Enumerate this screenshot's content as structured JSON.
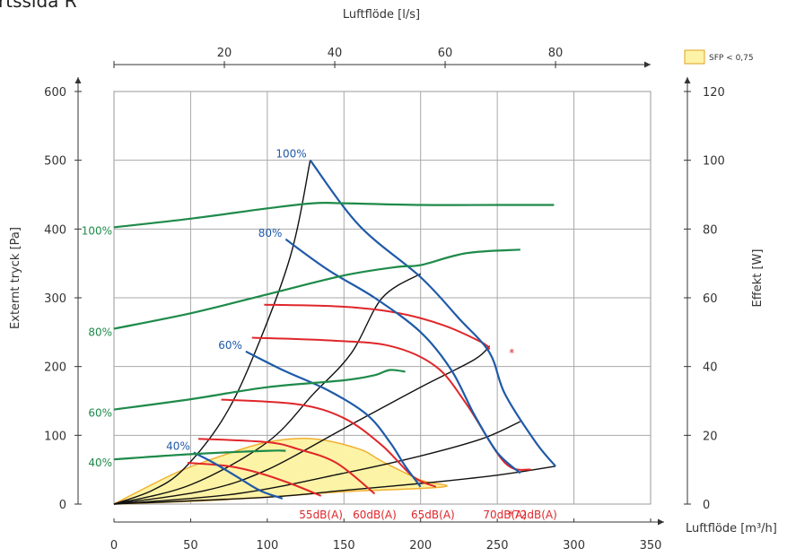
{
  "chart_data": {
    "type": "line",
    "title_fragment": "rtssida R",
    "x_axis_bottom": {
      "label": "Luftflöde [m³/h]",
      "range": [
        0,
        350
      ],
      "ticks": [
        0,
        50,
        100,
        150,
        200,
        250,
        300,
        350
      ]
    },
    "x_axis_top": {
      "label": "Luftflöde [l/s]",
      "ticks": [
        20,
        40,
        60,
        80
      ],
      "m3h_per_ls": 3.6
    },
    "y_axis_left": {
      "label": "Externt tryck  [Pa]",
      "range": [
        0,
        600
      ],
      "ticks": [
        0,
        100,
        200,
        300,
        400,
        500,
        600
      ]
    },
    "y_axis_right": {
      "label": "Effekt [W]",
      "range": [
        0,
        120
      ],
      "ticks": [
        0,
        20,
        40,
        60,
        80,
        100,
        120
      ]
    },
    "grid": true,
    "legend": {
      "label": "SFP < 0,75",
      "color": "#fdf3a6",
      "border": "#e0a020",
      "position": "top-right"
    },
    "colors": {
      "pressure": "#1f5aa8",
      "power": "#1e8a4a",
      "sound": "#e0262a",
      "system": "#111111",
      "sfp_fill": "#fdf3a6",
      "sfp_border": "#f0b030"
    },
    "pressure_curves": [
      {
        "label": "100%",
        "points": [
          [
            128,
            500
          ],
          [
            160,
            405
          ],
          [
            200,
            330
          ],
          [
            225,
            270
          ],
          [
            245,
            220
          ],
          [
            255,
            160
          ],
          [
            275,
            90
          ],
          [
            288,
            55
          ]
        ]
      },
      {
        "label": "80%",
        "points": [
          [
            112,
            385
          ],
          [
            140,
            340
          ],
          [
            170,
            300
          ],
          [
            200,
            250
          ],
          [
            220,
            195
          ],
          [
            235,
            130
          ],
          [
            250,
            75
          ],
          [
            265,
            45
          ]
        ]
      },
      {
        "label": "60%",
        "points": [
          [
            86,
            222
          ],
          [
            110,
            195
          ],
          [
            140,
            165
          ],
          [
            165,
            130
          ],
          [
            180,
            90
          ],
          [
            190,
            55
          ],
          [
            200,
            25
          ]
        ]
      },
      {
        "label": "40%",
        "points": [
          [
            52,
            75
          ],
          [
            65,
            60
          ],
          [
            80,
            40
          ],
          [
            95,
            20
          ],
          [
            110,
            8
          ]
        ]
      }
    ],
    "power_curves": [
      {
        "label": "100%",
        "series_axis": "right",
        "points": [
          [
            0,
            80.5
          ],
          [
            50,
            83
          ],
          [
            100,
            86
          ],
          [
            130,
            87.5
          ],
          [
            150,
            87.5
          ],
          [
            200,
            87
          ],
          [
            250,
            87
          ],
          [
            287,
            87
          ]
        ]
      },
      {
        "label": "80%",
        "series_axis": "right",
        "points": [
          [
            0,
            51
          ],
          [
            50,
            55.5
          ],
          [
            100,
            61
          ],
          [
            150,
            66.5
          ],
          [
            185,
            69
          ],
          [
            200,
            69.5
          ],
          [
            230,
            73
          ],
          [
            265,
            74
          ]
        ]
      },
      {
        "label": "60%",
        "series_axis": "right",
        "points": [
          [
            0,
            27.5
          ],
          [
            50,
            30.5
          ],
          [
            100,
            34
          ],
          [
            150,
            36
          ],
          [
            170,
            37.5
          ],
          [
            180,
            39
          ],
          [
            190,
            38.5
          ]
        ]
      },
      {
        "label": "40%",
        "series_axis": "right",
        "points": [
          [
            0,
            13
          ],
          [
            50,
            14.5
          ],
          [
            100,
            15.5
          ],
          [
            112,
            15.5
          ]
        ]
      }
    ],
    "sound_curves": [
      {
        "label": "55dB(A)",
        "points": [
          [
            48,
            60
          ],
          [
            75,
            55
          ],
          [
            95,
            45
          ],
          [
            115,
            30
          ],
          [
            135,
            12
          ]
        ]
      },
      {
        "label": "60dB(A)",
        "points": [
          [
            55,
            95
          ],
          [
            100,
            90
          ],
          [
            120,
            80
          ],
          [
            145,
            60
          ],
          [
            170,
            15
          ]
        ]
      },
      {
        "label": "65dB(A)",
        "points": [
          [
            70,
            152
          ],
          [
            120,
            145
          ],
          [
            150,
            125
          ],
          [
            175,
            85
          ],
          [
            195,
            40
          ],
          [
            210,
            25
          ]
        ]
      },
      {
        "label": "70dB(A)",
        "points": [
          [
            90,
            242
          ],
          [
            140,
            238
          ],
          [
            180,
            230
          ],
          [
            210,
            200
          ],
          [
            230,
            145
          ],
          [
            255,
            60
          ],
          [
            272,
            50
          ]
        ]
      },
      {
        "label": "*72dB(A)",
        "points": [
          [
            98,
            290
          ],
          [
            150,
            287
          ],
          [
            185,
            278
          ],
          [
            215,
            260
          ],
          [
            240,
            235
          ],
          [
            245,
            225
          ]
        ]
      }
    ],
    "sound_labels": [
      "55dB(A)",
      "60dB(A)",
      "65dB(A)",
      "70dB(A)",
      "*72dB(A)"
    ],
    "asterisk_marker": {
      "text": "*",
      "x": 253,
      "y": 220
    },
    "system_curves": [
      [
        [
          0,
          0
        ],
        [
          25,
          20
        ],
        [
          45,
          50
        ],
        [
          70,
          120
        ],
        [
          90,
          210
        ],
        [
          115,
          360
        ],
        [
          128,
          500
        ]
      ],
      [
        [
          0,
          0
        ],
        [
          50,
          28
        ],
        [
          100,
          90
        ],
        [
          130,
          160
        ],
        [
          155,
          220
        ],
        [
          175,
          300
        ],
        [
          200,
          335
        ]
      ],
      [
        [
          0,
          0
        ],
        [
          60,
          20
        ],
        [
          100,
          50
        ],
        [
          150,
          110
        ],
        [
          200,
          170
        ],
        [
          235,
          210
        ],
        [
          245,
          230
        ]
      ],
      [
        [
          0,
          0
        ],
        [
          80,
          15
        ],
        [
          150,
          45
        ],
        [
          200,
          70
        ],
        [
          240,
          95
        ],
        [
          265,
          120
        ]
      ],
      [
        [
          0,
          0
        ],
        [
          100,
          10
        ],
        [
          150,
          20
        ],
        [
          200,
          30
        ],
        [
          250,
          42
        ],
        [
          288,
          55
        ]
      ]
    ],
    "sfp_region": [
      [
        0,
        0
      ],
      [
        40,
        45
      ],
      [
        70,
        70
      ],
      [
        100,
        90
      ],
      [
        130,
        95
      ],
      [
        160,
        80
      ],
      [
        175,
        62
      ],
      [
        200,
        35
      ],
      [
        215,
        25
      ],
      [
        150,
        18
      ],
      [
        100,
        10
      ],
      [
        50,
        4
      ],
      [
        0,
        0
      ]
    ]
  }
}
